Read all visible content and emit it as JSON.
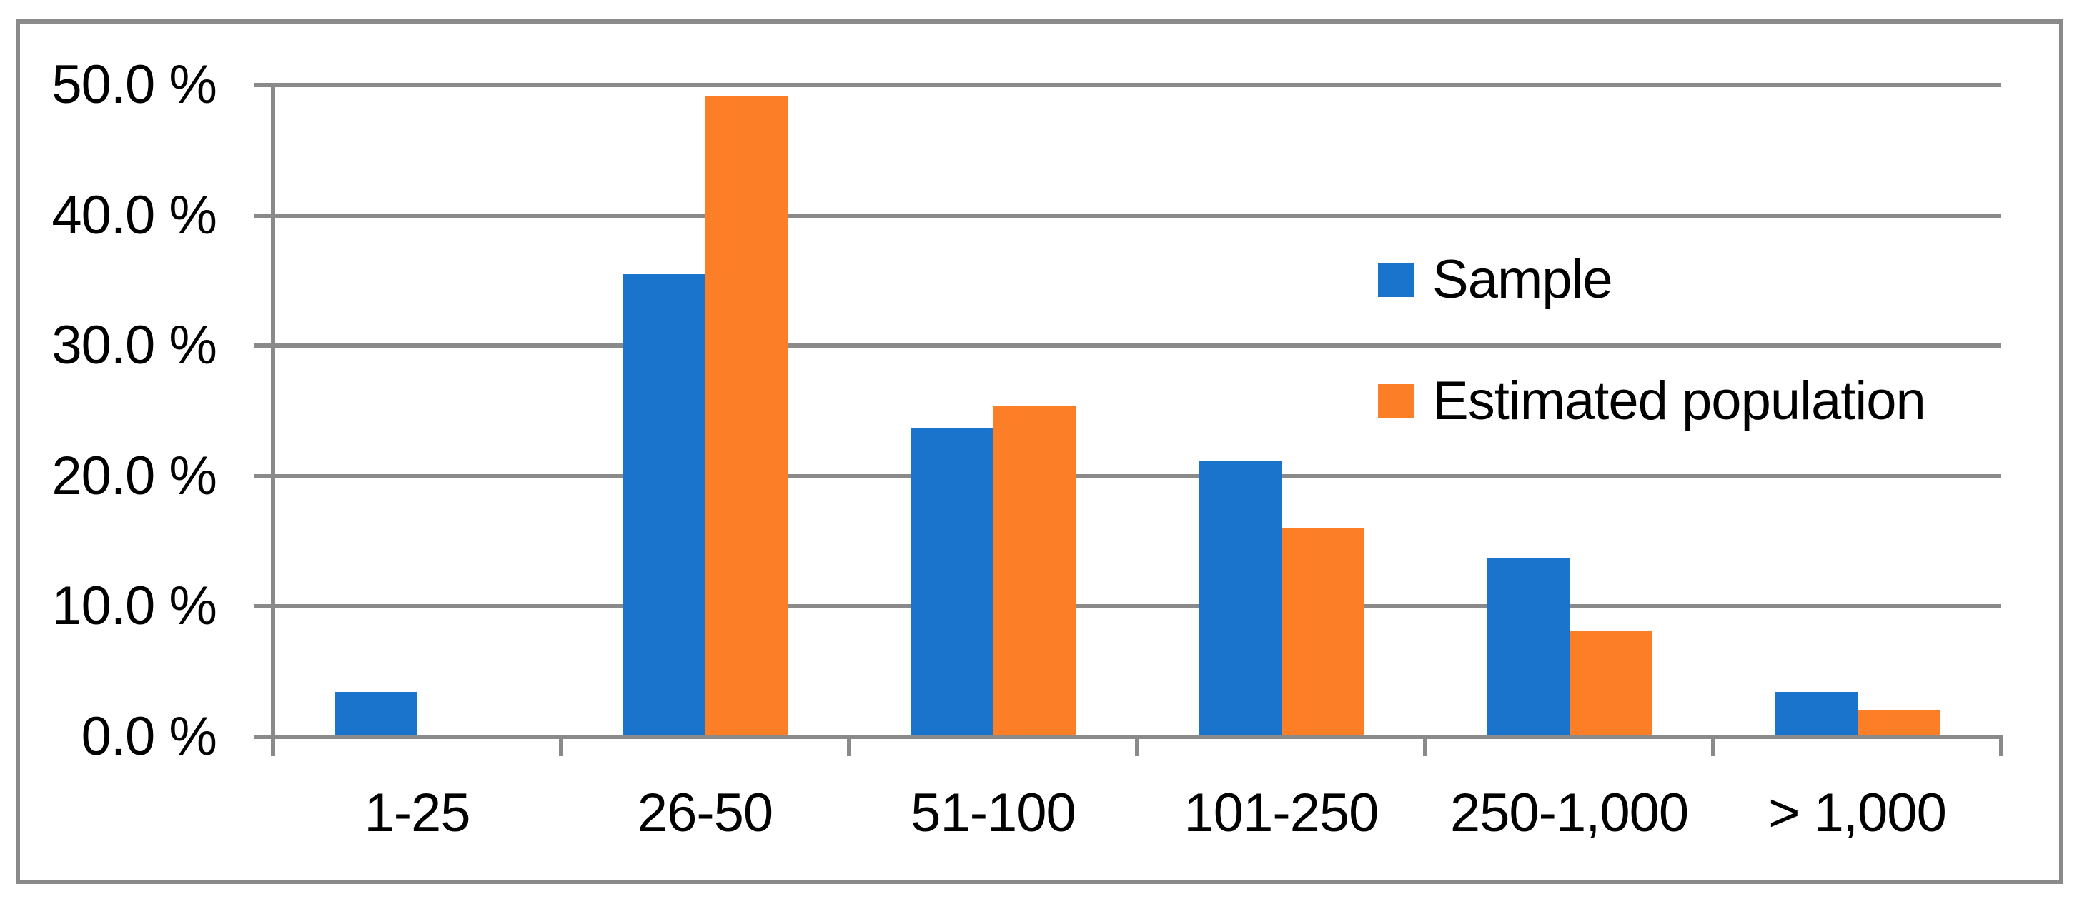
{
  "chart_data": {
    "type": "bar",
    "title": "",
    "categories": [
      "1-25",
      "26-50",
      "51-100",
      "101-250",
      "250-1,000",
      "> 1,000"
    ],
    "series": [
      {
        "name": "Sample",
        "color": "#1B74CB",
        "values": [
          3.3,
          35.3,
          23.5,
          21.0,
          13.5,
          3.3
        ]
      },
      {
        "name": "Estimated population",
        "color": "#FC7E26",
        "values": [
          0.0,
          49.0,
          25.2,
          15.8,
          8.0,
          1.9
        ]
      }
    ],
    "xlabel": "",
    "ylabel": "",
    "ylim": [
      0,
      50
    ],
    "ytick_step": 10,
    "ytick_labels": [
      "0.0 %",
      "10.0 %",
      "20.0 %",
      "30.0 %",
      "40.0 %",
      "50.0 %"
    ],
    "grid": true,
    "legend": {
      "position": "inside-right",
      "entries": [
        "Sample",
        "Estimated population"
      ]
    },
    "frame_color": "#8A8A8A",
    "text_color": "#000000",
    "background": "#FFFFFF"
  }
}
